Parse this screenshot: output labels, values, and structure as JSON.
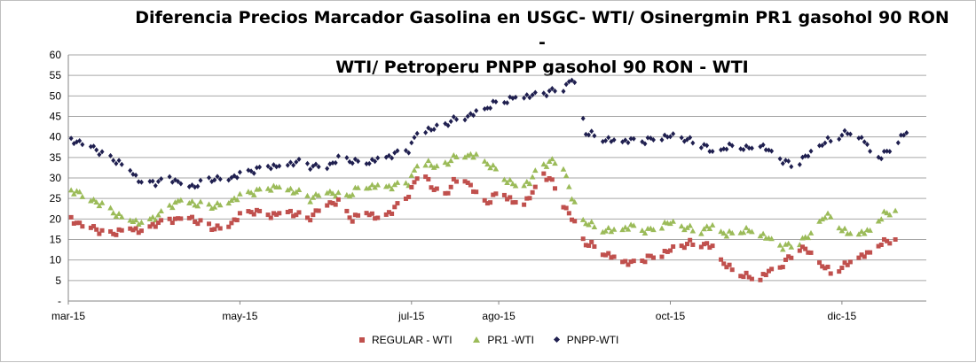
{
  "chart_data": {
    "type": "scatter",
    "title": "Diferencia Precios Marcador Gasolina en USGC- WTI/ Osinergmin PR1 gasohol 90 RON - WTI/ Petroperu PNPP gasohol 90 RON - WTI",
    "title_lines": [
      "Diferencia Precios Marcador Gasolina en USGC- WTI/ Osinergmin PR1 gasohol 90 RON -",
      "WTI/ Petroperu PNPP gasohol 90 RON - WTI"
    ],
    "xlabel": "",
    "ylabel": "",
    "ylim": [
      0,
      60
    ],
    "xlim": [
      "2015-03-01",
      "2015-12-31"
    ],
    "y_ticks": [
      "-",
      "5",
      "10",
      "15",
      "20",
      "25",
      "30",
      "35",
      "40",
      "45",
      "50",
      "55",
      "60"
    ],
    "x_ticks": [
      {
        "label": "mar-15",
        "date": "2015-03-01"
      },
      {
        "label": "may-15",
        "date": "2015-05-01"
      },
      {
        "label": "jul-15",
        "date": "2015-07-01"
      },
      {
        "label": "ago-15",
        "date": "2015-08-01"
      },
      {
        "label": "oct-15",
        "date": "2015-10-01"
      },
      {
        "label": "dic-15",
        "date": "2015-12-01"
      }
    ],
    "grid": true,
    "legend_position": "bottom",
    "colors": {
      "regular": "#c0504d",
      "pr1": "#9bbb59",
      "pnpp": "#1f1f4f",
      "grid": "#a6a6a6"
    },
    "anchors": {
      "regular": [
        [
          "2015-03-01",
          20
        ],
        [
          "2015-03-05",
          19
        ],
        [
          "2015-03-10",
          18
        ],
        [
          "2015-03-15",
          16
        ],
        [
          "2015-03-22",
          18
        ],
        [
          "2015-03-28",
          17
        ],
        [
          "2015-04-01",
          19
        ],
        [
          "2015-04-08",
          20
        ],
        [
          "2015-04-12",
          21
        ],
        [
          "2015-04-17",
          19
        ],
        [
          "2015-04-21",
          18
        ],
        [
          "2015-04-26",
          18
        ],
        [
          "2015-05-01",
          21
        ],
        [
          "2015-05-06",
          22
        ],
        [
          "2015-05-12",
          21
        ],
        [
          "2015-05-18",
          22
        ],
        [
          "2015-05-25",
          20
        ],
        [
          "2015-06-01",
          24
        ],
        [
          "2015-06-05",
          24
        ],
        [
          "2015-06-10",
          20
        ],
        [
          "2015-06-15",
          22
        ],
        [
          "2015-06-19",
          20
        ],
        [
          "2015-06-24",
          22
        ],
        [
          "2015-06-29",
          25
        ],
        [
          "2015-07-03",
          30
        ],
        [
          "2015-07-06",
          31
        ],
        [
          "2015-07-08",
          28
        ],
        [
          "2015-07-12",
          25
        ],
        [
          "2015-07-16",
          29
        ],
        [
          "2015-07-20",
          30
        ],
        [
          "2015-07-24",
          26
        ],
        [
          "2015-07-28",
          24
        ],
        [
          "2015-08-02",
          27
        ],
        [
          "2015-08-06",
          24
        ],
        [
          "2015-08-10",
          24
        ],
        [
          "2015-08-14",
          27
        ],
        [
          "2015-08-17",
          31
        ],
        [
          "2015-08-20",
          29
        ],
        [
          "2015-08-23",
          25
        ],
        [
          "2015-08-27",
          20
        ],
        [
          "2015-08-30",
          16
        ],
        [
          "2015-09-01",
          14
        ],
        [
          "2015-09-05",
          13
        ],
        [
          "2015-09-09",
          11
        ],
        [
          "2015-09-13",
          10
        ],
        [
          "2015-09-17",
          9
        ],
        [
          "2015-09-21",
          10
        ],
        [
          "2015-09-26",
          11
        ],
        [
          "2015-09-30",
          12
        ],
        [
          "2015-10-04",
          13
        ],
        [
          "2015-10-08",
          14
        ],
        [
          "2015-10-12",
          14
        ],
        [
          "2015-10-16",
          13
        ],
        [
          "2015-10-20",
          9
        ],
        [
          "2015-10-24",
          7
        ],
        [
          "2015-10-28",
          6
        ],
        [
          "2015-11-01",
          5
        ],
        [
          "2015-11-05",
          7
        ],
        [
          "2015-11-09",
          8
        ],
        [
          "2015-11-13",
          11
        ],
        [
          "2015-11-16",
          13
        ],
        [
          "2015-11-19",
          12
        ],
        [
          "2015-11-23",
          9
        ],
        [
          "2015-11-27",
          7
        ],
        [
          "2015-12-01",
          8
        ],
        [
          "2015-12-05",
          10
        ],
        [
          "2015-12-09",
          11
        ],
        [
          "2015-12-12",
          12
        ],
        [
          "2015-12-15",
          14
        ],
        [
          "2015-12-20",
          15
        ]
      ],
      "pr1": [
        [
          "2015-03-01",
          26
        ],
        [
          "2015-03-04",
          27
        ],
        [
          "2015-03-08",
          25
        ],
        [
          "2015-03-12",
          24
        ],
        [
          "2015-03-16",
          22
        ],
        [
          "2015-03-22",
          20
        ],
        [
          "2015-03-28",
          19
        ],
        [
          "2015-04-02",
          21
        ],
        [
          "2015-04-06",
          23
        ],
        [
          "2015-04-10",
          25
        ],
        [
          "2015-04-14",
          24
        ],
        [
          "2015-04-20",
          23
        ],
        [
          "2015-04-26",
          24
        ],
        [
          "2015-05-02",
          26
        ],
        [
          "2015-05-08",
          27
        ],
        [
          "2015-05-14",
          28
        ],
        [
          "2015-05-20",
          27
        ],
        [
          "2015-05-26",
          25
        ],
        [
          "2015-06-01",
          27
        ],
        [
          "2015-06-07",
          25
        ],
        [
          "2015-06-13",
          28
        ],
        [
          "2015-06-19",
          28
        ],
        [
          "2015-06-25",
          28
        ],
        [
          "2015-06-30",
          29
        ],
        [
          "2015-07-03",
          33
        ],
        [
          "2015-07-07",
          34
        ],
        [
          "2015-07-10",
          32
        ],
        [
          "2015-07-14",
          34
        ],
        [
          "2015-07-19",
          36
        ],
        [
          "2015-07-25",
          35
        ],
        [
          "2015-07-29",
          33
        ],
        [
          "2015-08-03",
          30
        ],
        [
          "2015-08-07",
          28
        ],
        [
          "2015-08-12",
          29
        ],
        [
          "2015-08-16",
          33
        ],
        [
          "2015-08-20",
          34
        ],
        [
          "2015-08-24",
          33
        ],
        [
          "2015-08-27",
          25
        ],
        [
          "2015-08-30",
          20
        ],
        [
          "2015-09-04",
          18
        ],
        [
          "2015-09-10",
          17
        ],
        [
          "2015-09-17",
          18
        ],
        [
          "2015-09-23",
          17
        ],
        [
          "2015-09-30",
          19
        ],
        [
          "2015-10-05",
          18
        ],
        [
          "2015-10-11",
          17
        ],
        [
          "2015-10-16",
          18
        ],
        [
          "2015-10-21",
          16
        ],
        [
          "2015-10-26",
          17
        ],
        [
          "2015-10-31",
          17
        ],
        [
          "2015-11-05",
          15
        ],
        [
          "2015-11-10",
          13
        ],
        [
          "2015-11-15",
          14
        ],
        [
          "2015-11-20",
          16
        ],
        [
          "2015-11-24",
          20
        ],
        [
          "2015-11-28",
          21
        ],
        [
          "2015-12-01",
          17
        ],
        [
          "2015-12-06",
          16
        ],
        [
          "2015-12-11",
          17
        ],
        [
          "2015-12-16",
          21
        ],
        [
          "2015-12-20",
          22
        ]
      ],
      "pnpp": [
        [
          "2015-03-01",
          39
        ],
        [
          "2015-03-05",
          39
        ],
        [
          "2015-03-09",
          38
        ],
        [
          "2015-03-15",
          35
        ],
        [
          "2015-03-19",
          34
        ],
        [
          "2015-03-23",
          32
        ],
        [
          "2015-03-27",
          29
        ],
        [
          "2015-04-01",
          29
        ],
        [
          "2015-04-06",
          30
        ],
        [
          "2015-04-10",
          29
        ],
        [
          "2015-04-14",
          28
        ],
        [
          "2015-04-18",
          29
        ],
        [
          "2015-04-22",
          30
        ],
        [
          "2015-04-27",
          30
        ],
        [
          "2015-05-01",
          31
        ],
        [
          "2015-05-06",
          32
        ],
        [
          "2015-05-11",
          33
        ],
        [
          "2015-05-16",
          33
        ],
        [
          "2015-05-21",
          34
        ],
        [
          "2015-05-26",
          33
        ],
        [
          "2015-06-01",
          33
        ],
        [
          "2015-06-06",
          35
        ],
        [
          "2015-06-11",
          34
        ],
        [
          "2015-06-16",
          34
        ],
        [
          "2015-06-21",
          35
        ],
        [
          "2015-06-26",
          36
        ],
        [
          "2015-06-30",
          37
        ],
        [
          "2015-07-03",
          41
        ],
        [
          "2015-07-07",
          42
        ],
        [
          "2015-07-11",
          42
        ],
        [
          "2015-07-15",
          44
        ],
        [
          "2015-07-20",
          45
        ],
        [
          "2015-07-25",
          46
        ],
        [
          "2015-07-30",
          48
        ],
        [
          "2015-08-04",
          49
        ],
        [
          "2015-08-09",
          50
        ],
        [
          "2015-08-14",
          50
        ],
        [
          "2015-08-19",
          51
        ],
        [
          "2015-08-24",
          52
        ],
        [
          "2015-08-27",
          54
        ],
        [
          "2015-08-29",
          51
        ],
        [
          "2015-09-01",
          41
        ],
        [
          "2015-09-05",
          40
        ],
        [
          "2015-09-10",
          39
        ],
        [
          "2015-09-16",
          39
        ],
        [
          "2015-09-22",
          39
        ],
        [
          "2015-09-28",
          40
        ],
        [
          "2015-10-03",
          40
        ],
        [
          "2015-10-08",
          39
        ],
        [
          "2015-10-13",
          38
        ],
        [
          "2015-10-16",
          36
        ],
        [
          "2015-10-20",
          37
        ],
        [
          "2015-10-24",
          38
        ],
        [
          "2015-10-28",
          37
        ],
        [
          "2015-11-02",
          38
        ],
        [
          "2015-11-06",
          36
        ],
        [
          "2015-11-10",
          34
        ],
        [
          "2015-11-14",
          33
        ],
        [
          "2015-11-18",
          35
        ],
        [
          "2015-11-22",
          37
        ],
        [
          "2015-11-26",
          39
        ],
        [
          "2015-11-30",
          40
        ],
        [
          "2015-12-03",
          41
        ],
        [
          "2015-12-06",
          40
        ],
        [
          "2015-12-09",
          39
        ],
        [
          "2015-12-12",
          35
        ],
        [
          "2015-12-15",
          35
        ],
        [
          "2015-12-18",
          37
        ],
        [
          "2015-12-21",
          39
        ],
        [
          "2015-12-24",
          41
        ]
      ]
    },
    "series": [
      {
        "key": "regular",
        "name": "REGULAR - WTI"
      },
      {
        "key": "pr1",
        "name": "PR1 -WTI"
      },
      {
        "key": "pnpp",
        "name": "PNPP-WTI"
      }
    ]
  }
}
